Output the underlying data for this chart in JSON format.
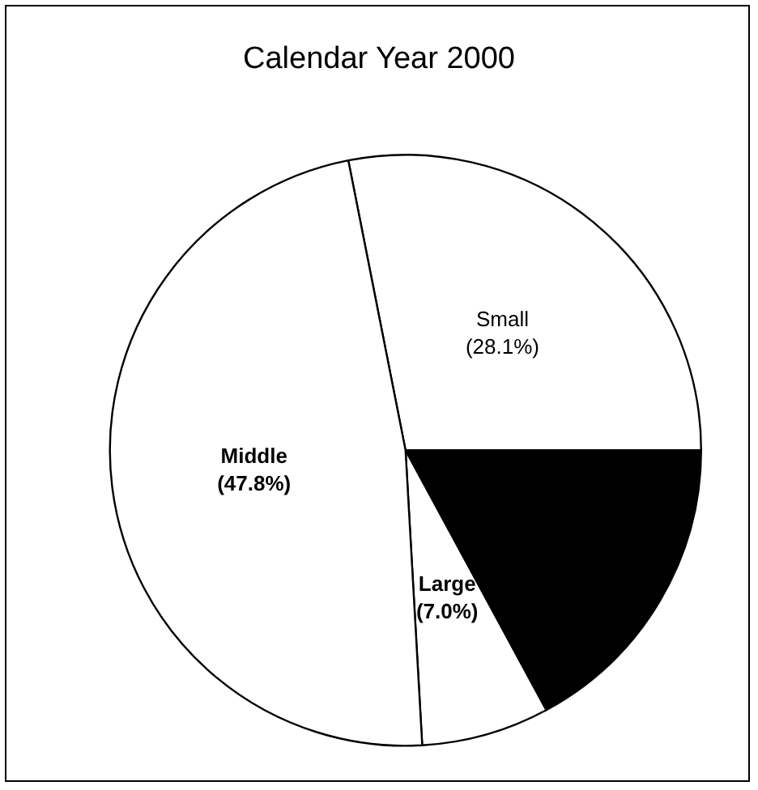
{
  "chart_data": {
    "type": "pie",
    "title": "Calendar Year 2000",
    "categories": [
      "Small",
      null,
      "Large",
      "Middle"
    ],
    "values": [
      28.1,
      17.1,
      7.0,
      47.8
    ],
    "value_labels": [
      "(28.1%)",
      null,
      "(7.0%)",
      "(47.8%)"
    ],
    "colors": [
      "#ffffff",
      "#000000",
      "#ffffff",
      "#ffffff"
    ]
  }
}
